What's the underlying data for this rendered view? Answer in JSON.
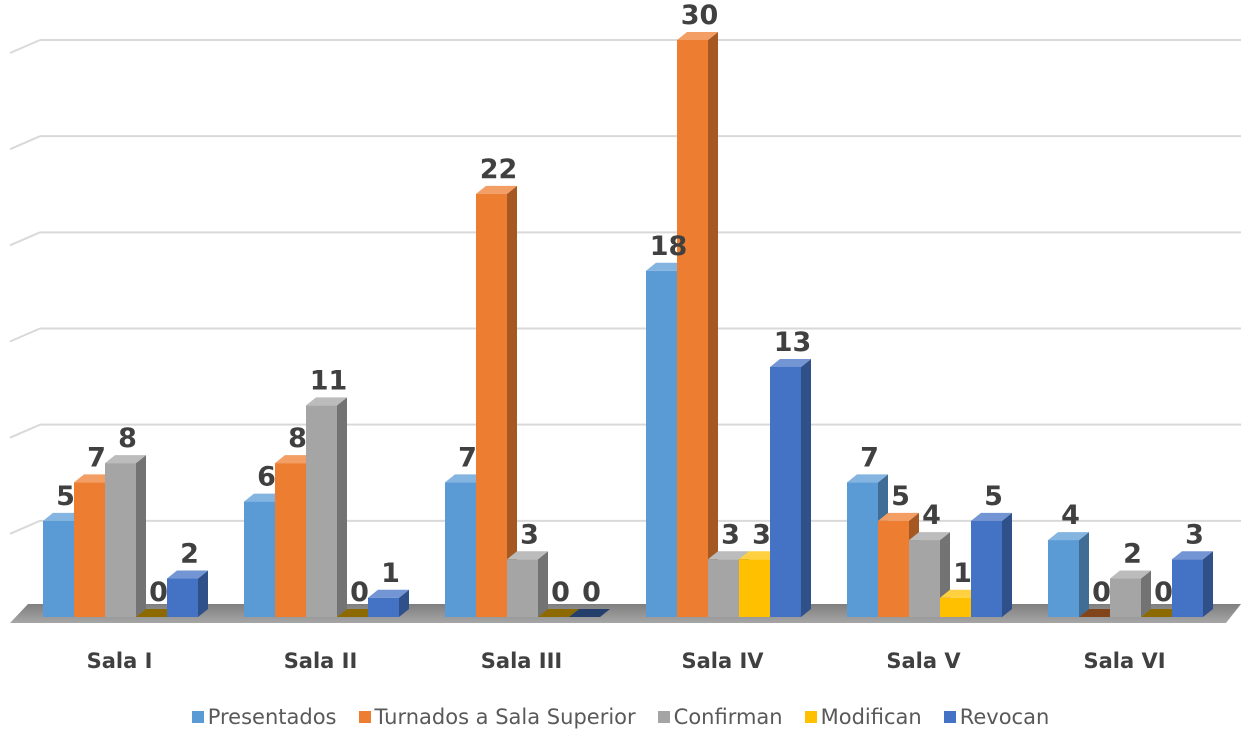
{
  "chart_data": {
    "type": "bar",
    "categories": [
      "Sala I",
      "Sala II",
      "Sala III",
      "Sala IV",
      "Sala V",
      "Sala VI"
    ],
    "series": [
      {
        "name": "Presentados",
        "values": [
          5,
          6,
          7,
          18,
          7,
          4
        ],
        "color": "#5b9bd5"
      },
      {
        "name": "Turnados a Sala Superior",
        "values": [
          7,
          8,
          22,
          30,
          5,
          0
        ],
        "color": "#ed7d31"
      },
      {
        "name": "Confirman",
        "values": [
          8,
          11,
          3,
          3,
          4,
          2
        ],
        "color": "#a5a5a5"
      },
      {
        "name": "Modifican",
        "values": [
          0,
          0,
          0,
          3,
          1,
          0
        ],
        "color": "#ffc000"
      },
      {
        "name": "Revocan",
        "values": [
          2,
          1,
          0,
          13,
          5,
          3
        ],
        "color": "#4472c4"
      }
    ],
    "ylim": [
      0,
      30
    ],
    "grid": true,
    "legend_position": "bottom",
    "style": "3d-clustered-column"
  }
}
